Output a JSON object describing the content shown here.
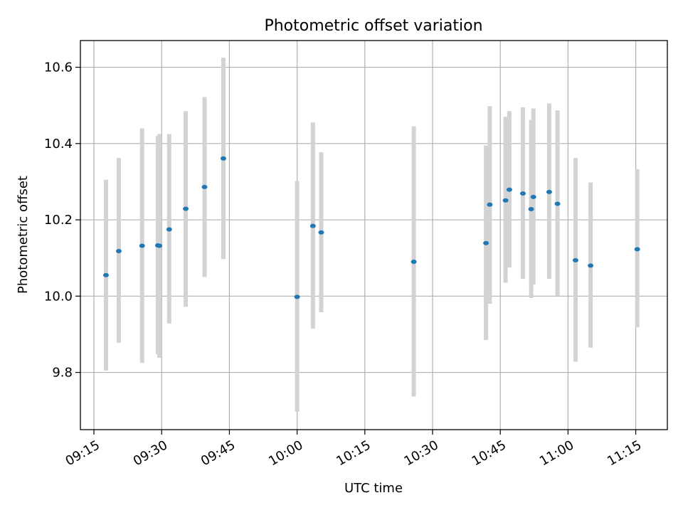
{
  "chart_data": {
    "type": "scatter",
    "title": "Photometric offset variation",
    "xlabel": "UTC time",
    "ylabel": "Photometric offset",
    "xlim": [
      "09:12",
      "11:22"
    ],
    "ylim": [
      9.65,
      10.67
    ],
    "x_ticks": [
      "09:15",
      "09:30",
      "09:45",
      "10:00",
      "10:15",
      "10:30",
      "10:45",
      "11:00",
      "11:15"
    ],
    "y_ticks": [
      "9.8",
      "10.0",
      "10.2",
      "10.4",
      "10.6"
    ],
    "grid": true,
    "legend": "none",
    "colors": {
      "point": "#1f77b4",
      "error_bar": "#d3d3d3",
      "grid": "#b0b0b0"
    },
    "points": [
      {
        "x": "09:17:40",
        "y": 10.055,
        "y_low": 9.805,
        "y_high": 10.305
      },
      {
        "x": "09:20:30",
        "y": 10.118,
        "y_low": 9.878,
        "y_high": 10.362
      },
      {
        "x": "09:25:40",
        "y": 10.132,
        "y_low": 9.825,
        "y_high": 10.44
      },
      {
        "x": "09:29:10",
        "y": 10.133,
        "y_low": 9.848,
        "y_high": 10.42
      },
      {
        "x": "09:29:30",
        "y": 10.132,
        "y_low": 9.838,
        "y_high": 10.425
      },
      {
        "x": "09:31:40",
        "y": 10.175,
        "y_low": 9.928,
        "y_high": 10.425
      },
      {
        "x": "09:35:20",
        "y": 10.229,
        "y_low": 9.972,
        "y_high": 10.485
      },
      {
        "x": "09:39:30",
        "y": 10.286,
        "y_low": 10.05,
        "y_high": 10.522
      },
      {
        "x": "09:43:40",
        "y": 10.361,
        "y_low": 10.097,
        "y_high": 10.625
      },
      {
        "x": "10:00:00",
        "y": 9.998,
        "y_low": 9.697,
        "y_high": 10.302
      },
      {
        "x": "10:03:30",
        "y": 10.184,
        "y_low": 9.915,
        "y_high": 10.455
      },
      {
        "x": "10:05:20",
        "y": 10.167,
        "y_low": 9.958,
        "y_high": 10.377
      },
      {
        "x": "10:25:50",
        "y": 10.09,
        "y_low": 9.737,
        "y_high": 10.445
      },
      {
        "x": "10:41:50",
        "y": 10.139,
        "y_low": 9.885,
        "y_high": 10.395
      },
      {
        "x": "10:42:40",
        "y": 10.24,
        "y_low": 9.98,
        "y_high": 10.498
      },
      {
        "x": "10:46:10",
        "y": 10.251,
        "y_low": 10.035,
        "y_high": 10.47
      },
      {
        "x": "10:47:00",
        "y": 10.279,
        "y_low": 10.075,
        "y_high": 10.485
      },
      {
        "x": "10:50:00",
        "y": 10.269,
        "y_low": 10.045,
        "y_high": 10.495
      },
      {
        "x": "10:51:50",
        "y": 10.228,
        "y_low": 9.995,
        "y_high": 10.462
      },
      {
        "x": "10:52:20",
        "y": 10.26,
        "y_low": 10.03,
        "y_high": 10.492
      },
      {
        "x": "10:55:50",
        "y": 10.273,
        "y_low": 10.045,
        "y_high": 10.505
      },
      {
        "x": "10:57:40",
        "y": 10.242,
        "y_low": 10.0,
        "y_high": 10.487
      },
      {
        "x": "11:01:40",
        "y": 10.094,
        "y_low": 9.828,
        "y_high": 10.362
      },
      {
        "x": "11:05:00",
        "y": 10.08,
        "y_low": 9.865,
        "y_high": 10.298
      },
      {
        "x": "11:15:20",
        "y": 10.123,
        "y_low": 9.918,
        "y_high": 10.333
      }
    ]
  }
}
